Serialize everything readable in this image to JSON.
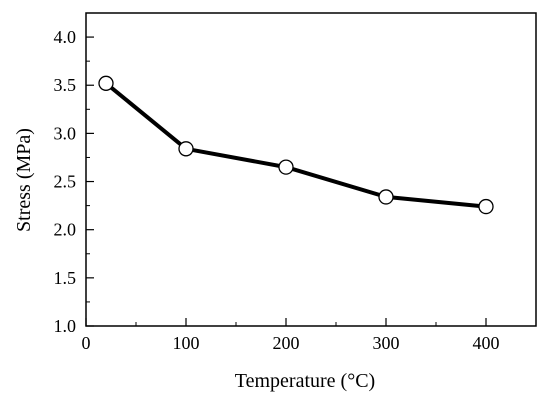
{
  "chart_data": {
    "type": "line",
    "title": "",
    "xlabel": "Temperature (°C)",
    "ylabel": "Stress (MPa)",
    "xlim": [
      0,
      450
    ],
    "ylim": [
      1.0,
      4.25
    ],
    "xticks": [
      0,
      100,
      200,
      300,
      400
    ],
    "xtick_labels": [
      "0",
      "100",
      "200",
      "300",
      "400"
    ],
    "yticks": [
      1.0,
      1.5,
      2.0,
      2.5,
      3.0,
      3.5,
      4.0
    ],
    "ytick_labels": [
      "1.0",
      "1.5",
      "2.0",
      "2.5",
      "3.0",
      "3.5",
      "4.0"
    ],
    "grid": false,
    "legend": "none",
    "series": [
      {
        "x": [
          20,
          100,
          200,
          300,
          400
        ],
        "y": [
          3.52,
          2.84,
          2.65,
          2.34,
          2.24
        ],
        "marker": "open-circle",
        "color": "#000000"
      }
    ]
  }
}
